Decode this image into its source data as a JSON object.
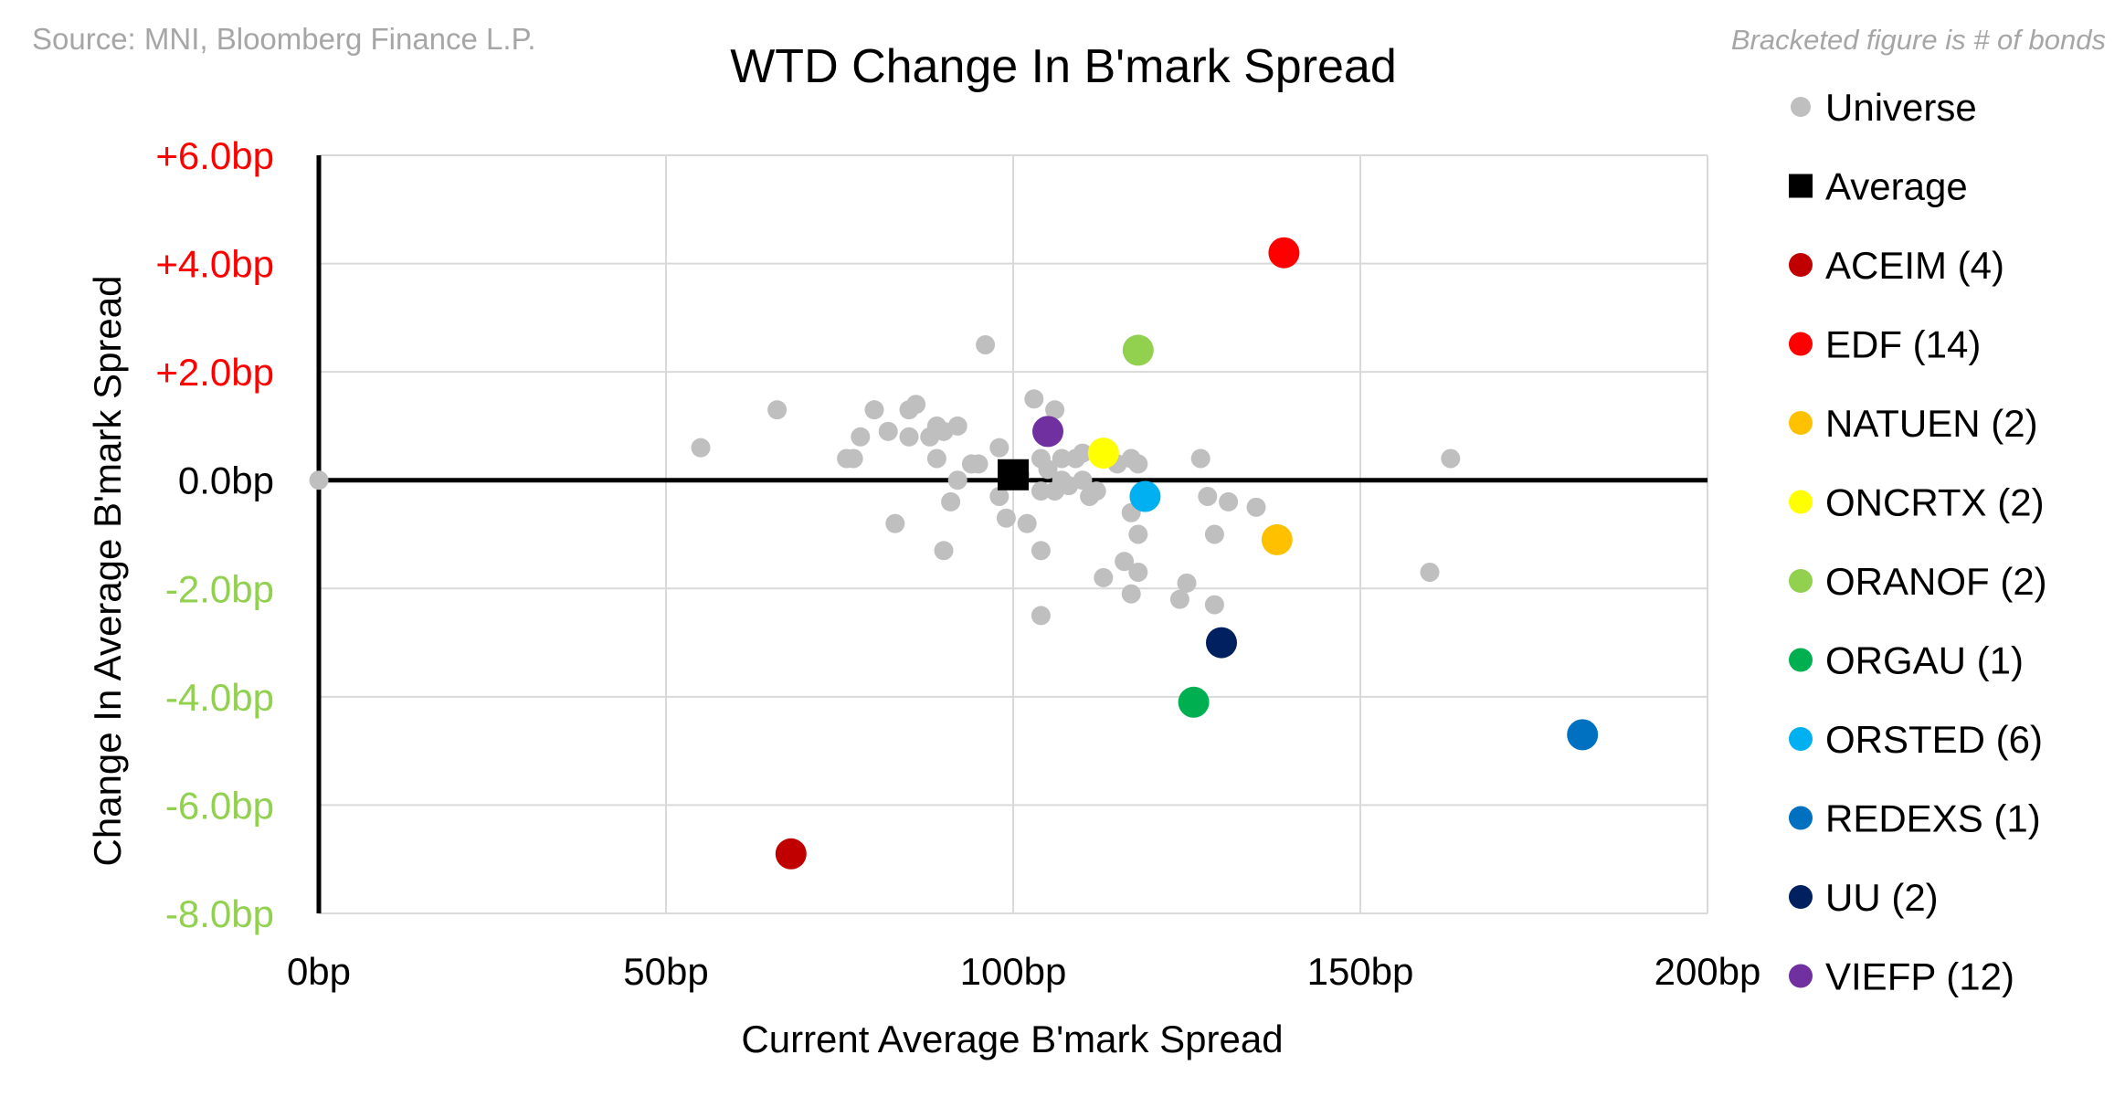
{
  "source": "Source: MNI, Bloomberg Finance L.P.",
  "note": "Bracketed figure is # of bonds",
  "chart_data": {
    "type": "scatter",
    "title": "WTD Change In B'mark Spread",
    "xlabel": "Current Average B'mark Spread",
    "ylabel": "Change In Average B'mark Spread",
    "xlim": [
      0,
      200
    ],
    "ylim": [
      -8,
      6
    ],
    "xticks": [
      0,
      50,
      100,
      150,
      200
    ],
    "xtick_labels": [
      "0bp",
      "50bp",
      "100bp",
      "150bp",
      "200bp"
    ],
    "yticks": [
      6,
      4,
      2,
      0,
      -2,
      -4,
      -6,
      -8
    ],
    "ytick_labels": [
      "+6.0bp",
      "+4.0bp",
      "+2.0bp",
      "0.0bp",
      "-2.0bp",
      "-4.0bp",
      "-6.0bp",
      "-8.0bp"
    ],
    "ytick_colors": [
      "#ff0000",
      "#ff0000",
      "#ff0000",
      "#000000",
      "#92d050",
      "#92d050",
      "#92d050",
      "#92d050"
    ],
    "grid": true,
    "legend_position": "right",
    "series": [
      {
        "name": "Universe",
        "color": "#bfbfbf",
        "marker": "circle",
        "points": [
          [
            0,
            0.0
          ],
          [
            55,
            0.6
          ],
          [
            66,
            1.3
          ],
          [
            76,
            0.4
          ],
          [
            77,
            0.4
          ],
          [
            78,
            0.8
          ],
          [
            80,
            1.3
          ],
          [
            82,
            0.9
          ],
          [
            83,
            -0.8
          ],
          [
            85,
            1.3
          ],
          [
            85,
            0.8
          ],
          [
            86,
            1.4
          ],
          [
            88,
            0.8
          ],
          [
            89,
            1.0
          ],
          [
            89,
            0.4
          ],
          [
            90,
            0.9
          ],
          [
            91,
            -0.4
          ],
          [
            90,
            -1.3
          ],
          [
            92,
            1.0
          ],
          [
            92,
            0.0
          ],
          [
            94,
            0.3
          ],
          [
            96,
            2.5
          ],
          [
            95,
            0.3
          ],
          [
            98,
            0.6
          ],
          [
            98,
            -0.3
          ],
          [
            99,
            -0.7
          ],
          [
            101,
            0.1
          ],
          [
            102,
            -0.8
          ],
          [
            103,
            1.5
          ],
          [
            104,
            0.4
          ],
          [
            104,
            -0.2
          ],
          [
            104,
            -1.3
          ],
          [
            104,
            -2.5
          ],
          [
            105,
            0.2
          ],
          [
            106,
            1.3
          ],
          [
            106,
            -0.2
          ],
          [
            107,
            0.4
          ],
          [
            107,
            0.0
          ],
          [
            108,
            -0.1
          ],
          [
            109,
            0.4
          ],
          [
            110,
            0.5
          ],
          [
            110,
            0.0
          ],
          [
            111,
            -0.3
          ],
          [
            112,
            -0.2
          ],
          [
            113,
            -1.8
          ],
          [
            115,
            0.3
          ],
          [
            116,
            -1.5
          ],
          [
            117,
            0.4
          ],
          [
            117,
            -0.6
          ],
          [
            117,
            -2.1
          ],
          [
            118,
            0.3
          ],
          [
            118,
            -1.0
          ],
          [
            118,
            -1.7
          ],
          [
            124,
            -2.2
          ],
          [
            125,
            -1.9
          ],
          [
            127,
            0.4
          ],
          [
            128,
            -0.3
          ],
          [
            129,
            -1.0
          ],
          [
            129,
            -2.3
          ],
          [
            131,
            -0.4
          ],
          [
            135,
            -0.5
          ],
          [
            160,
            -1.7
          ],
          [
            163,
            0.4
          ]
        ]
      },
      {
        "name": "Average",
        "color": "#000000",
        "marker": "square",
        "points": [
          [
            100,
            0.1
          ]
        ]
      },
      {
        "name": "ACEIM",
        "count": "(4)",
        "color": "#c00000",
        "marker": "circle",
        "points": [
          [
            68,
            -6.9
          ]
        ]
      },
      {
        "name": "EDF",
        "count": "(14)",
        "color": "#ff0000",
        "marker": "circle",
        "points": [
          [
            139,
            4.2
          ]
        ]
      },
      {
        "name": "NATUEN",
        "count": "(2)",
        "color": "#ffc000",
        "marker": "circle",
        "points": [
          [
            138,
            -1.1
          ]
        ]
      },
      {
        "name": "ONCRTX",
        "count": "(2)",
        "color": "#ffff00",
        "marker": "circle",
        "points": [
          [
            113,
            0.5
          ]
        ]
      },
      {
        "name": "ORANOF",
        "count": "(2)",
        "color": "#92d050",
        "marker": "circle",
        "points": [
          [
            118,
            2.4
          ]
        ]
      },
      {
        "name": "ORGAU",
        "count": "(1)",
        "color": "#00b050",
        "marker": "circle",
        "points": [
          [
            126,
            -4.1
          ]
        ]
      },
      {
        "name": "ORSTED",
        "count": "(6)",
        "color": "#00b0f0",
        "marker": "circle",
        "points": [
          [
            119,
            -0.3
          ]
        ]
      },
      {
        "name": "REDEXS",
        "count": "(1)",
        "color": "#0070c0",
        "marker": "circle",
        "points": [
          [
            182,
            -4.7
          ]
        ]
      },
      {
        "name": "UU",
        "count": "(2)",
        "color": "#002060",
        "marker": "circle",
        "points": [
          [
            130,
            -3.0
          ]
        ]
      },
      {
        "name": "VIEFP",
        "count": "(12)",
        "color": "#7030a0",
        "marker": "circle",
        "points": [
          [
            105,
            0.9
          ]
        ]
      }
    ]
  }
}
